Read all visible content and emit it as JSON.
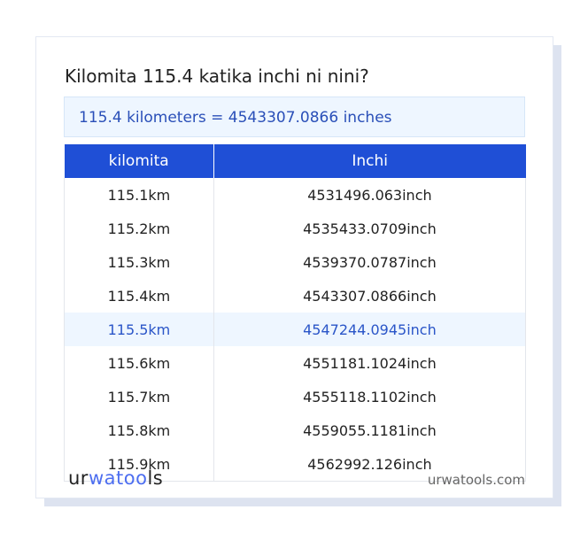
{
  "title": "Kilomita 115.4 katika inchi ni nini?",
  "result": "115.4 kilometers = 4543307.0866 inches",
  "table": {
    "headers": [
      "kilomita",
      "Inchi"
    ],
    "rows": [
      [
        "115.1km",
        "4531496.063inch"
      ],
      [
        "115.2km",
        "4535433.0709inch"
      ],
      [
        "115.3km",
        "4539370.0787inch"
      ],
      [
        "115.4km",
        "4543307.0866inch"
      ],
      [
        "115.5km",
        "4547244.0945inch"
      ],
      [
        "115.6km",
        "4551181.1024inch"
      ],
      [
        "115.7km",
        "4555118.1102inch"
      ],
      [
        "115.8km",
        "4559055.1181inch"
      ],
      [
        "115.9km",
        "4562992.126inch"
      ]
    ],
    "highlighted_row": 4
  },
  "footer": {
    "logo": "urwatools",
    "logo_parts": [
      "ur",
      "wat",
      "oo",
      "ls"
    ],
    "site": "urwatools.com"
  },
  "colors": {
    "accent": "#1f4fd6",
    "highlight_bg": "#eef6ff"
  }
}
